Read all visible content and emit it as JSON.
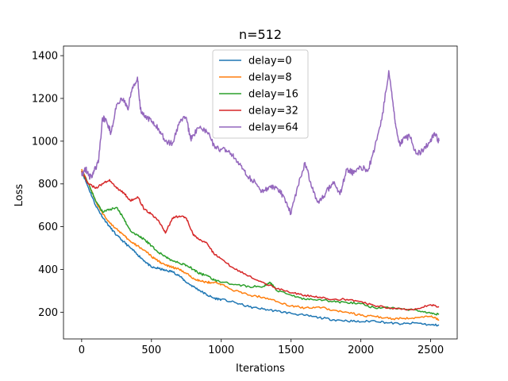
{
  "chart_data": {
    "type": "line",
    "title": "n=512",
    "xlabel": "Iterations",
    "ylabel": "Loss",
    "xlim": [
      -130,
      2690
    ],
    "ylim": [
      75,
      1445
    ],
    "xticks": [
      0,
      500,
      1000,
      1500,
      2000,
      2500
    ],
    "yticks": [
      200,
      400,
      600,
      800,
      1000,
      1200,
      1400
    ],
    "grid": false,
    "legend": "top-center",
    "series": [
      {
        "name": "delay=0",
        "color": "#1f77b4",
        "x": [
          0,
          50,
          100,
          150,
          200,
          250,
          300,
          350,
          400,
          450,
          500,
          550,
          600,
          650,
          700,
          750,
          800,
          850,
          900,
          950,
          1000,
          1100,
          1200,
          1300,
          1400,
          1500,
          1600,
          1700,
          1800,
          1900,
          2000,
          2100,
          2200,
          2300,
          2400,
          2500,
          2560
        ],
        "y": [
          860,
          780,
          700,
          645,
          600,
          560,
          530,
          500,
          470,
          440,
          410,
          405,
          395,
          390,
          370,
          340,
          320,
          300,
          280,
          265,
          260,
          245,
          225,
          215,
          205,
          195,
          185,
          175,
          165,
          160,
          155,
          160,
          150,
          145,
          150,
          140,
          140
        ]
      },
      {
        "name": "delay=8",
        "color": "#ff7f0e",
        "x": [
          0,
          50,
          100,
          150,
          200,
          250,
          300,
          350,
          400,
          450,
          500,
          550,
          600,
          650,
          700,
          750,
          800,
          850,
          900,
          950,
          1000,
          1100,
          1200,
          1300,
          1400,
          1500,
          1600,
          1700,
          1800,
          1900,
          2000,
          2100,
          2200,
          2300,
          2400,
          2500,
          2560
        ],
        "y": [
          870,
          800,
          720,
          660,
          620,
          590,
          560,
          530,
          510,
          490,
          460,
          440,
          420,
          410,
          400,
          380,
          360,
          345,
          340,
          340,
          330,
          300,
          280,
          270,
          250,
          230,
          220,
          225,
          210,
          200,
          185,
          180,
          170,
          170,
          175,
          180,
          165
        ]
      },
      {
        "name": "delay=16",
        "color": "#2ca02c",
        "x": [
          0,
          50,
          100,
          150,
          200,
          250,
          300,
          350,
          400,
          450,
          500,
          550,
          600,
          650,
          700,
          750,
          800,
          850,
          900,
          950,
          1000,
          1100,
          1200,
          1300,
          1350,
          1400,
          1500,
          1600,
          1700,
          1800,
          1900,
          2000,
          2100,
          2200,
          2300,
          2400,
          2500,
          2560
        ],
        "y": [
          860,
          800,
          720,
          670,
          680,
          690,
          640,
          580,
          560,
          540,
          510,
          480,
          460,
          440,
          430,
          420,
          400,
          380,
          370,
          350,
          340,
          330,
          320,
          320,
          340,
          300,
          280,
          260,
          260,
          250,
          245,
          240,
          220,
          220,
          215,
          210,
          195,
          190
        ]
      },
      {
        "name": "delay=32",
        "color": "#d62728",
        "x": [
          0,
          50,
          100,
          150,
          200,
          250,
          300,
          350,
          400,
          450,
          500,
          550,
          600,
          650,
          700,
          750,
          800,
          850,
          900,
          950,
          1000,
          1100,
          1200,
          1300,
          1400,
          1500,
          1600,
          1700,
          1800,
          1900,
          2000,
          2100,
          2200,
          2300,
          2400,
          2500,
          2560
        ],
        "y": [
          860,
          800,
          780,
          800,
          820,
          780,
          760,
          720,
          740,
          680,
          660,
          630,
          570,
          640,
          650,
          640,
          560,
          540,
          520,
          470,
          450,
          400,
          370,
          340,
          310,
          290,
          280,
          270,
          260,
          260,
          250,
          230,
          220,
          215,
          215,
          235,
          225
        ]
      },
      {
        "name": "delay=64",
        "color": "#9467bd",
        "x": [
          0,
          30,
          60,
          90,
          120,
          150,
          180,
          210,
          250,
          300,
          330,
          360,
          400,
          420,
          450,
          500,
          550,
          600,
          650,
          700,
          750,
          780,
          800,
          850,
          900,
          950,
          1000,
          1050,
          1100,
          1150,
          1200,
          1250,
          1300,
          1350,
          1400,
          1450,
          1500,
          1550,
          1600,
          1650,
          1700,
          1750,
          1800,
          1850,
          1900,
          1950,
          2000,
          2050,
          2100,
          2150,
          2200,
          2230,
          2250,
          2280,
          2300,
          2350,
          2400,
          2450,
          2500,
          2530,
          2560
        ],
        "y": [
          850,
          870,
          830,
          860,
          900,
          1110,
          1090,
          1040,
          1170,
          1200,
          1150,
          1240,
          1300,
          1150,
          1120,
          1090,
          1060,
          1000,
          990,
          1090,
          1110,
          1010,
          1030,
          1070,
          1040,
          980,
          960,
          950,
          920,
          870,
          830,
          800,
          760,
          790,
          780,
          740,
          660,
          790,
          900,
          780,
          710,
          760,
          810,
          750,
          870,
          850,
          880,
          860,
          970,
          1100,
          1330,
          1180,
          1070,
          980,
          1010,
          1020,
          940,
          960,
          1010,
          1030,
          1000
        ]
      }
    ]
  }
}
